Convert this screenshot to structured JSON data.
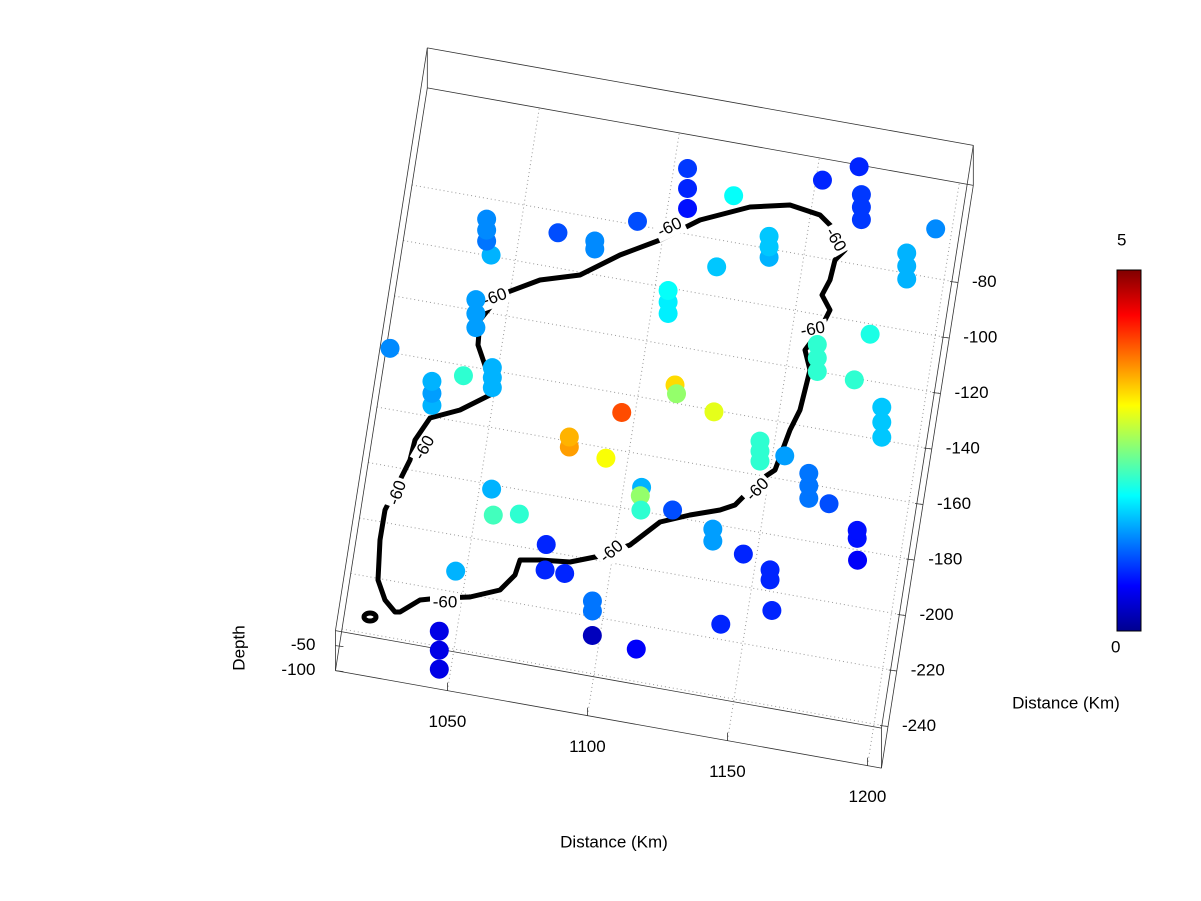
{
  "chart_data": {
    "type": "scatter3d",
    "xlabel": "Distance (Km)",
    "ylabel": "Distance (Km)",
    "zlabel": "Depth",
    "xlim": [
      1010,
      1205
    ],
    "xticks": [
      1050,
      1100,
      1150,
      1200
    ],
    "ylim": [
      -255,
      -45
    ],
    "yticks": [
      -80,
      -100,
      -120,
      -140,
      -160,
      -180,
      -200,
      -220,
      -240
    ],
    "zlim": [
      -100,
      -20
    ],
    "zticks": [
      -100,
      -50
    ],
    "grid": true,
    "colormap": "jet",
    "clim": [
      0,
      5
    ],
    "cticks": [
      0,
      5
    ],
    "contour": {
      "level": -60,
      "color": "#000000"
    },
    "x": [
      1123,
      1153,
      1165,
      1195,
      1064,
      1091,
      1042,
      1121,
      1012,
      1178,
      1175,
      1039,
      1113,
      1114,
      1128,
      1096,
      1093,
      1155,
      1173,
      1107,
      1107,
      1108,
      1055,
      1057,
      1066,
      1119,
      1077,
      1146,
      1186,
      1047,
      1078,
      1085,
      1159,
      1142,
      1098,
      1114,
      1107,
      1107,
      1107,
      1168,
      1168,
      1168,
      1187,
      1187,
      1187,
      1039,
      1039,
      1039,
      1077,
      1077,
      1138,
      1138,
      1138,
      1106,
      1106,
      1106,
      1040,
      1040,
      1040,
      1161,
      1161,
      1161,
      1049,
      1049,
      1049,
      1029,
      1029,
      1029,
      1079,
      1079,
      1187,
      1187,
      1187,
      1146,
      1146,
      1146,
      1165,
      1165,
      1165,
      1134,
      1134,
      1184,
      1184,
      1156,
      1156,
      1096,
      1096,
      1046,
      1046,
      1046
    ],
    "y": [
      -68,
      -57,
      -50,
      -67,
      -92,
      -83,
      -104,
      -94,
      -143,
      -108,
      -125,
      -148,
      -138,
      -141,
      -145,
      -151,
      -168,
      -156,
      -170,
      -176,
      -179,
      -184,
      -186,
      -195,
      -193,
      -182,
      -202,
      -193,
      -188,
      -217,
      -211,
      -211,
      -211,
      -219,
      -231,
      -233,
      -71,
      -71,
      -71,
      -64,
      -64,
      -64,
      -82,
      -82,
      -82,
      -95,
      -95,
      -95,
      -91,
      -91,
      -83,
      -83,
      -83,
      -109,
      -109,
      -109,
      -126,
      -126,
      -126,
      -120,
      -120,
      -120,
      -146,
      -146,
      -146,
      -156,
      -156,
      -156,
      -162,
      -162,
      -139,
      -139,
      -139,
      -155,
      -155,
      -155,
      -165,
      -165,
      -165,
      -186,
      -186,
      -176,
      -176,
      -196,
      -196,
      -218,
      -218,
      -248,
      -248,
      -248
    ],
    "z": [
      -75,
      -75,
      -75,
      -75,
      -75,
      -75,
      -75,
      -75,
      -75,
      -75,
      -75,
      -75,
      -75,
      -75,
      -75,
      -75,
      -75,
      -75,
      -75,
      -75,
      -75,
      -75,
      -75,
      -75,
      -75,
      -75,
      -75,
      -75,
      -75,
      -75,
      -75,
      -75,
      -75,
      -75,
      -75,
      -75,
      -100,
      -60,
      -20,
      -100,
      -75,
      -50,
      -100,
      -74,
      -48,
      -100,
      -78,
      -56,
      -100,
      -84,
      -100,
      -79,
      -58,
      -100,
      -77,
      -54,
      -100,
      -72,
      -44,
      -100,
      -73,
      -46,
      -100,
      -80,
      -60,
      -100,
      -76,
      -52,
      -100,
      -80,
      -100,
      -70,
      -40,
      -100,
      -80,
      -60,
      -100,
      -75,
      -50,
      -100,
      -76,
      -100,
      -84,
      -100,
      -80,
      -100,
      -80,
      -100,
      -62,
      -24
    ],
    "values": [
      1.9,
      0.8,
      0.8,
      1.3,
      1.0,
      1.0,
      1.5,
      1.6,
      1.3,
      2.0,
      2.1,
      2.1,
      3.3,
      2.6,
      3.0,
      4.0,
      3.1,
      1.4,
      1.0,
      1.5,
      2.6,
      2.1,
      1.5,
      2.2,
      2.1,
      1.0,
      0.8,
      0.8,
      0.6,
      1.5,
      0.8,
      0.8,
      0.8,
      0.8,
      0.3,
      0.6,
      0.7,
      0.8,
      0.9,
      0.9,
      0.9,
      0.9,
      1.5,
      1.5,
      1.5,
      1.2,
      1.3,
      1.3,
      1.3,
      1.3,
      1.5,
      1.6,
      1.6,
      1.8,
      1.8,
      1.9,
      1.4,
      1.4,
      1.4,
      2.1,
      2.1,
      2.1,
      1.5,
      1.5,
      1.5,
      1.5,
      1.4,
      1.5,
      3.6,
      3.5,
      1.6,
      1.6,
      1.6,
      2.1,
      2.1,
      2.1,
      1.2,
      1.2,
      1.2,
      1.4,
      1.4,
      0.7,
      0.7,
      0.8,
      0.8,
      1.2,
      1.2,
      0.5,
      0.5,
      0.5
    ]
  }
}
